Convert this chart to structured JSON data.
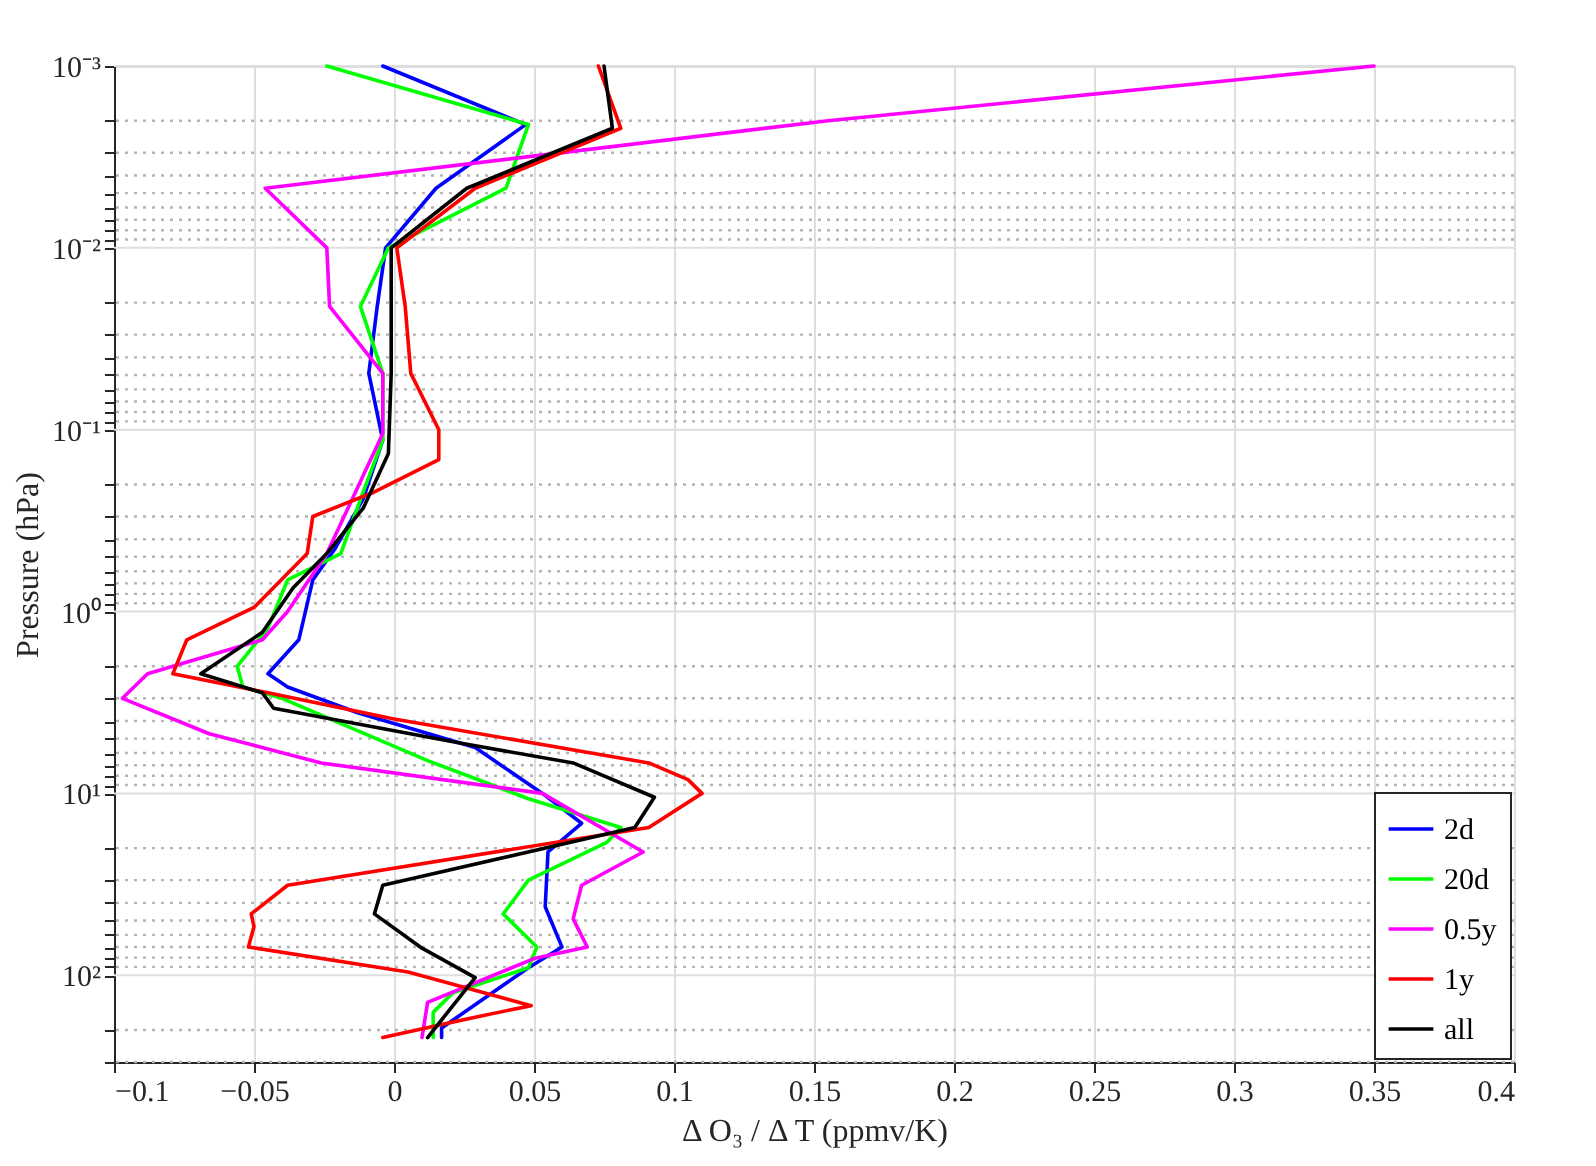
{
  "chart_data": {
    "type": "line",
    "xlabel": "Δ O₃ / Δ T (ppmv/K)",
    "ylabel": "Pressure (hPa)",
    "log": "y",
    "grid": true,
    "legend": "bottom right",
    "line_style": "solid",
    "xlim": [
      -0.1,
      0.4
    ],
    "xticks": [
      -0.1,
      -0.05,
      0,
      0.05,
      0.1,
      0.15,
      0.2,
      0.25,
      0.3,
      0.35,
      0.4
    ],
    "ylim": [
      300,
      0.001
    ],
    "yticks": [
      {
        "value": 0.001,
        "label": "10⁻³"
      },
      {
        "value": 0.002,
        "label": null
      },
      {
        "value": 0.003,
        "label": null
      },
      {
        "value": 0.004,
        "label": null
      },
      {
        "value": 0.005,
        "label": null
      },
      {
        "value": 0.006,
        "label": null
      },
      {
        "value": 0.007,
        "label": null
      },
      {
        "value": 0.008,
        "label": null
      },
      {
        "value": 0.009,
        "label": null
      },
      {
        "value": 0.01,
        "label": "10⁻²"
      },
      {
        "value": 0.02,
        "label": null
      },
      {
        "value": 0.03,
        "label": null
      },
      {
        "value": 0.04,
        "label": null
      },
      {
        "value": 0.05,
        "label": null
      },
      {
        "value": 0.06,
        "label": null
      },
      {
        "value": 0.07,
        "label": null
      },
      {
        "value": 0.08,
        "label": null
      },
      {
        "value": 0.09,
        "label": null
      },
      {
        "value": 0.1,
        "label": "10⁻¹"
      },
      {
        "value": 0.2,
        "label": null
      },
      {
        "value": 0.3,
        "label": null
      },
      {
        "value": 0.4,
        "label": null
      },
      {
        "value": 0.5,
        "label": null
      },
      {
        "value": 0.6,
        "label": null
      },
      {
        "value": 0.7,
        "label": null
      },
      {
        "value": 0.8,
        "label": null
      },
      {
        "value": 0.9,
        "label": null
      },
      {
        "value": 1,
        "label": "10⁰"
      },
      {
        "value": 2,
        "label": null
      },
      {
        "value": 3,
        "label": null
      },
      {
        "value": 4,
        "label": null
      },
      {
        "value": 5,
        "label": null
      },
      {
        "value": 6,
        "label": null
      },
      {
        "value": 7,
        "label": null
      },
      {
        "value": 8,
        "label": null
      },
      {
        "value": 9,
        "label": null
      },
      {
        "value": 10,
        "label": "10¹"
      },
      {
        "value": 20,
        "label": null
      },
      {
        "value": 30,
        "label": null
      },
      {
        "value": 40,
        "label": null
      },
      {
        "value": 50,
        "label": null
      },
      {
        "value": 60,
        "label": null
      },
      {
        "value": 70,
        "label": null
      },
      {
        "value": 80,
        "label": null
      },
      {
        "value": 90,
        "label": null
      },
      {
        "value": 100,
        "label": "10²"
      },
      {
        "value": 200,
        "label": null
      },
      {
        "value": 300,
        "label": null
      }
    ],
    "series": [
      {
        "name": "2d",
        "color": "#0000ff",
        "x": [
          -0.004,
          0.047,
          0.015,
          -0.003,
          -0.006,
          -0.009,
          -0.004,
          -0.011,
          -0.021,
          -0.029,
          -0.034,
          -0.045,
          -0.038,
          -0.013,
          0.029,
          0.053,
          0.067,
          0.055,
          0.054,
          0.06,
          0.048,
          0.017,
          0.017
        ],
        "values": [
          0.001,
          0.0021,
          0.0047,
          0.01,
          0.021,
          0.049,
          0.114,
          0.24,
          0.45,
          0.67,
          1.43,
          2.2,
          2.6,
          3.6,
          5.6,
          10,
          14.6,
          21,
          42,
          70,
          91,
          195,
          220
        ]
      },
      {
        "name": "20d",
        "color": "#00ff00",
        "x": [
          -0.024,
          0.048,
          0.04,
          -0.002,
          -0.012,
          -0.004,
          -0.004,
          -0.011,
          -0.019,
          -0.038,
          -0.045,
          -0.056,
          -0.054,
          -0.04,
          0.012,
          0.048,
          0.081,
          0.076,
          0.048,
          0.039,
          0.051,
          0.048,
          0.021,
          0.014,
          0.014
        ],
        "values": [
          0.001,
          0.0021,
          0.0047,
          0.01,
          0.021,
          0.049,
          0.114,
          0.22,
          0.48,
          0.67,
          1.23,
          2,
          2.6,
          3,
          6.6,
          10.7,
          15.4,
          18.6,
          30,
          46,
          70,
          91,
          125,
          160,
          220
        ]
      },
      {
        "name": "0.5y",
        "color": "#ff00ff",
        "x": [
          0.35,
          0.155,
          -0.046,
          -0.024,
          -0.023,
          -0.004,
          -0.004,
          -0.024,
          -0.038,
          -0.047,
          -0.088,
          -0.097,
          -0.066,
          -0.026,
          0.053,
          0.089,
          0.067,
          0.064,
          0.069,
          0.05,
          0.012,
          0.01
        ],
        "values": [
          0.001,
          0.002,
          0.0047,
          0.01,
          0.021,
          0.049,
          0.105,
          0.48,
          1,
          1.43,
          2.2,
          3,
          4.7,
          6.8,
          10,
          21,
          32,
          49,
          70,
          81,
          141,
          220
        ]
      },
      {
        "name": "1y",
        "color": "#ff0000",
        "x": [
          0.073,
          0.081,
          0.029,
          0.001,
          0.004,
          0.006,
          0.016,
          0.016,
          -0.007,
          -0.029,
          -0.031,
          -0.05,
          -0.074,
          -0.079,
          -0.045,
          0,
          0.091,
          0.105,
          0.11,
          0.091,
          -0.038,
          -0.051,
          -0.05,
          -0.052,
          0.005,
          0.049,
          0.029,
          -0.004
        ],
        "values": [
          0.001,
          0.0022,
          0.0047,
          0.01,
          0.021,
          0.049,
          0.1,
          0.146,
          0.22,
          0.3,
          0.48,
          0.95,
          1.43,
          2.2,
          2.8,
          3.9,
          6.8,
          8.4,
          10,
          15.4,
          32,
          46,
          54,
          70,
          96,
          147,
          170,
          220
        ]
      },
      {
        "name": "all",
        "color": "#000000",
        "x": [
          0.075,
          0.078,
          0.026,
          -0.001,
          -0.001,
          -0.002,
          -0.011,
          -0.024,
          -0.036,
          -0.047,
          -0.069,
          -0.047,
          -0.043,
          0.024,
          0.064,
          0.093,
          0.086,
          -0.004,
          -0.007,
          0.01,
          0.029,
          0.012
        ],
        "values": [
          0.001,
          0.0022,
          0.0047,
          0.01,
          0.049,
          0.135,
          0.27,
          0.48,
          0.74,
          1.3,
          2.2,
          2.8,
          3.4,
          5.3,
          6.8,
          10.5,
          15.4,
          32,
          46,
          71,
          103,
          220
        ]
      }
    ]
  }
}
